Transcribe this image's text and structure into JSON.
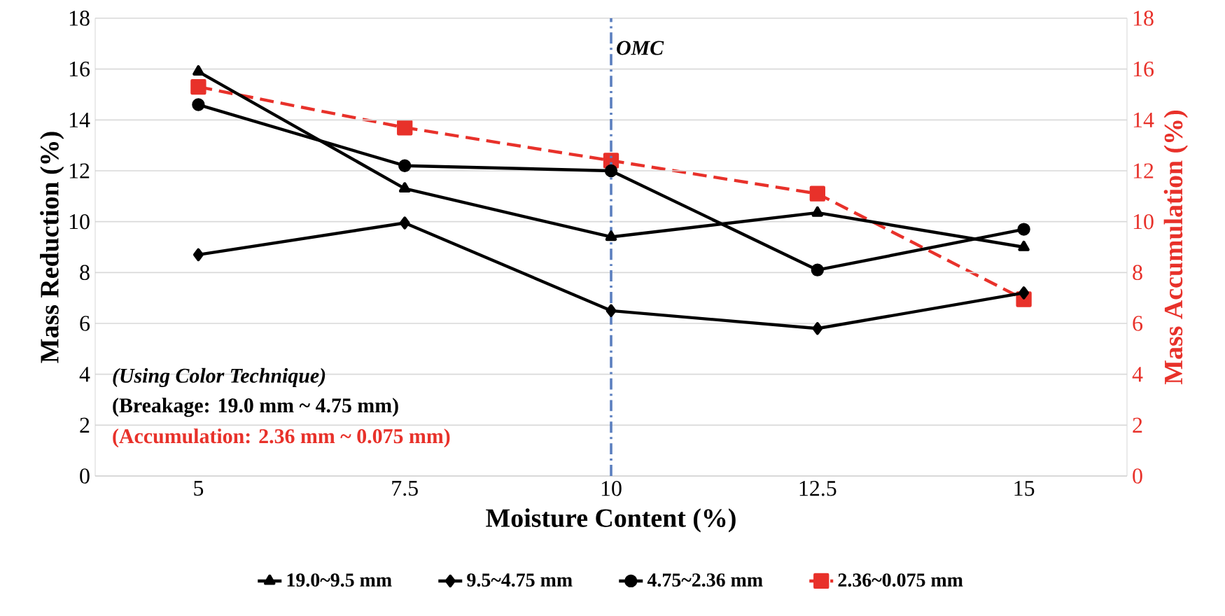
{
  "chart_data": {
    "type": "line",
    "xlabel": "Moisture Content (%)",
    "ylabel": "Mass Reduction (%)",
    "y2label": "Mass Accumulation (%)",
    "x": [
      5,
      7.5,
      10,
      12.5,
      15
    ],
    "xlim": [
      3.75,
      16.25
    ],
    "xticks": [
      5,
      7.5,
      10,
      12.5,
      15
    ],
    "ylim": [
      0,
      18
    ],
    "yticks": [
      0,
      2,
      4,
      6,
      8,
      10,
      12,
      14,
      16,
      18
    ],
    "y2lim": [
      0,
      18
    ],
    "y2ticks": [
      0,
      2,
      4,
      6,
      8,
      10,
      12,
      14,
      16,
      18
    ],
    "grid": "y",
    "legend": "bottom",
    "line_style": "solid",
    "series": [
      {
        "name": "19.0~9.5 mm",
        "color": "#000000",
        "marker": "triangle",
        "values": [
          15.9,
          11.3,
          9.4,
          10.35,
          9.0
        ]
      },
      {
        "name": "9.5~4.75 mm",
        "color": "#000000",
        "marker": "diamond",
        "values": [
          8.7,
          9.95,
          6.5,
          5.8,
          7.2
        ]
      },
      {
        "name": "4.75~2.36 mm",
        "color": "#000000",
        "marker": "circle",
        "values": [
          14.6,
          12.2,
          12.0,
          8.1,
          9.7
        ]
      },
      {
        "name": "2.36~0.075 mm",
        "color": "#e8312a",
        "marker": "square",
        "line_style": "dashed",
        "axis": "y2",
        "values": [
          15.3,
          13.7,
          12.4,
          11.1,
          6.95
        ]
      }
    ],
    "ref_lines": [
      {
        "axis": "x",
        "value": 10,
        "label": "OMC",
        "color": "#5b7fbf",
        "line_style": "dashdot"
      }
    ],
    "annotations": [
      "(Using Color Technique)",
      "(Breakage: 19.0 mm ~ 4.75 mm)",
      "(Accumulation: 2.36 mm ~ 0.075 mm)"
    ]
  }
}
